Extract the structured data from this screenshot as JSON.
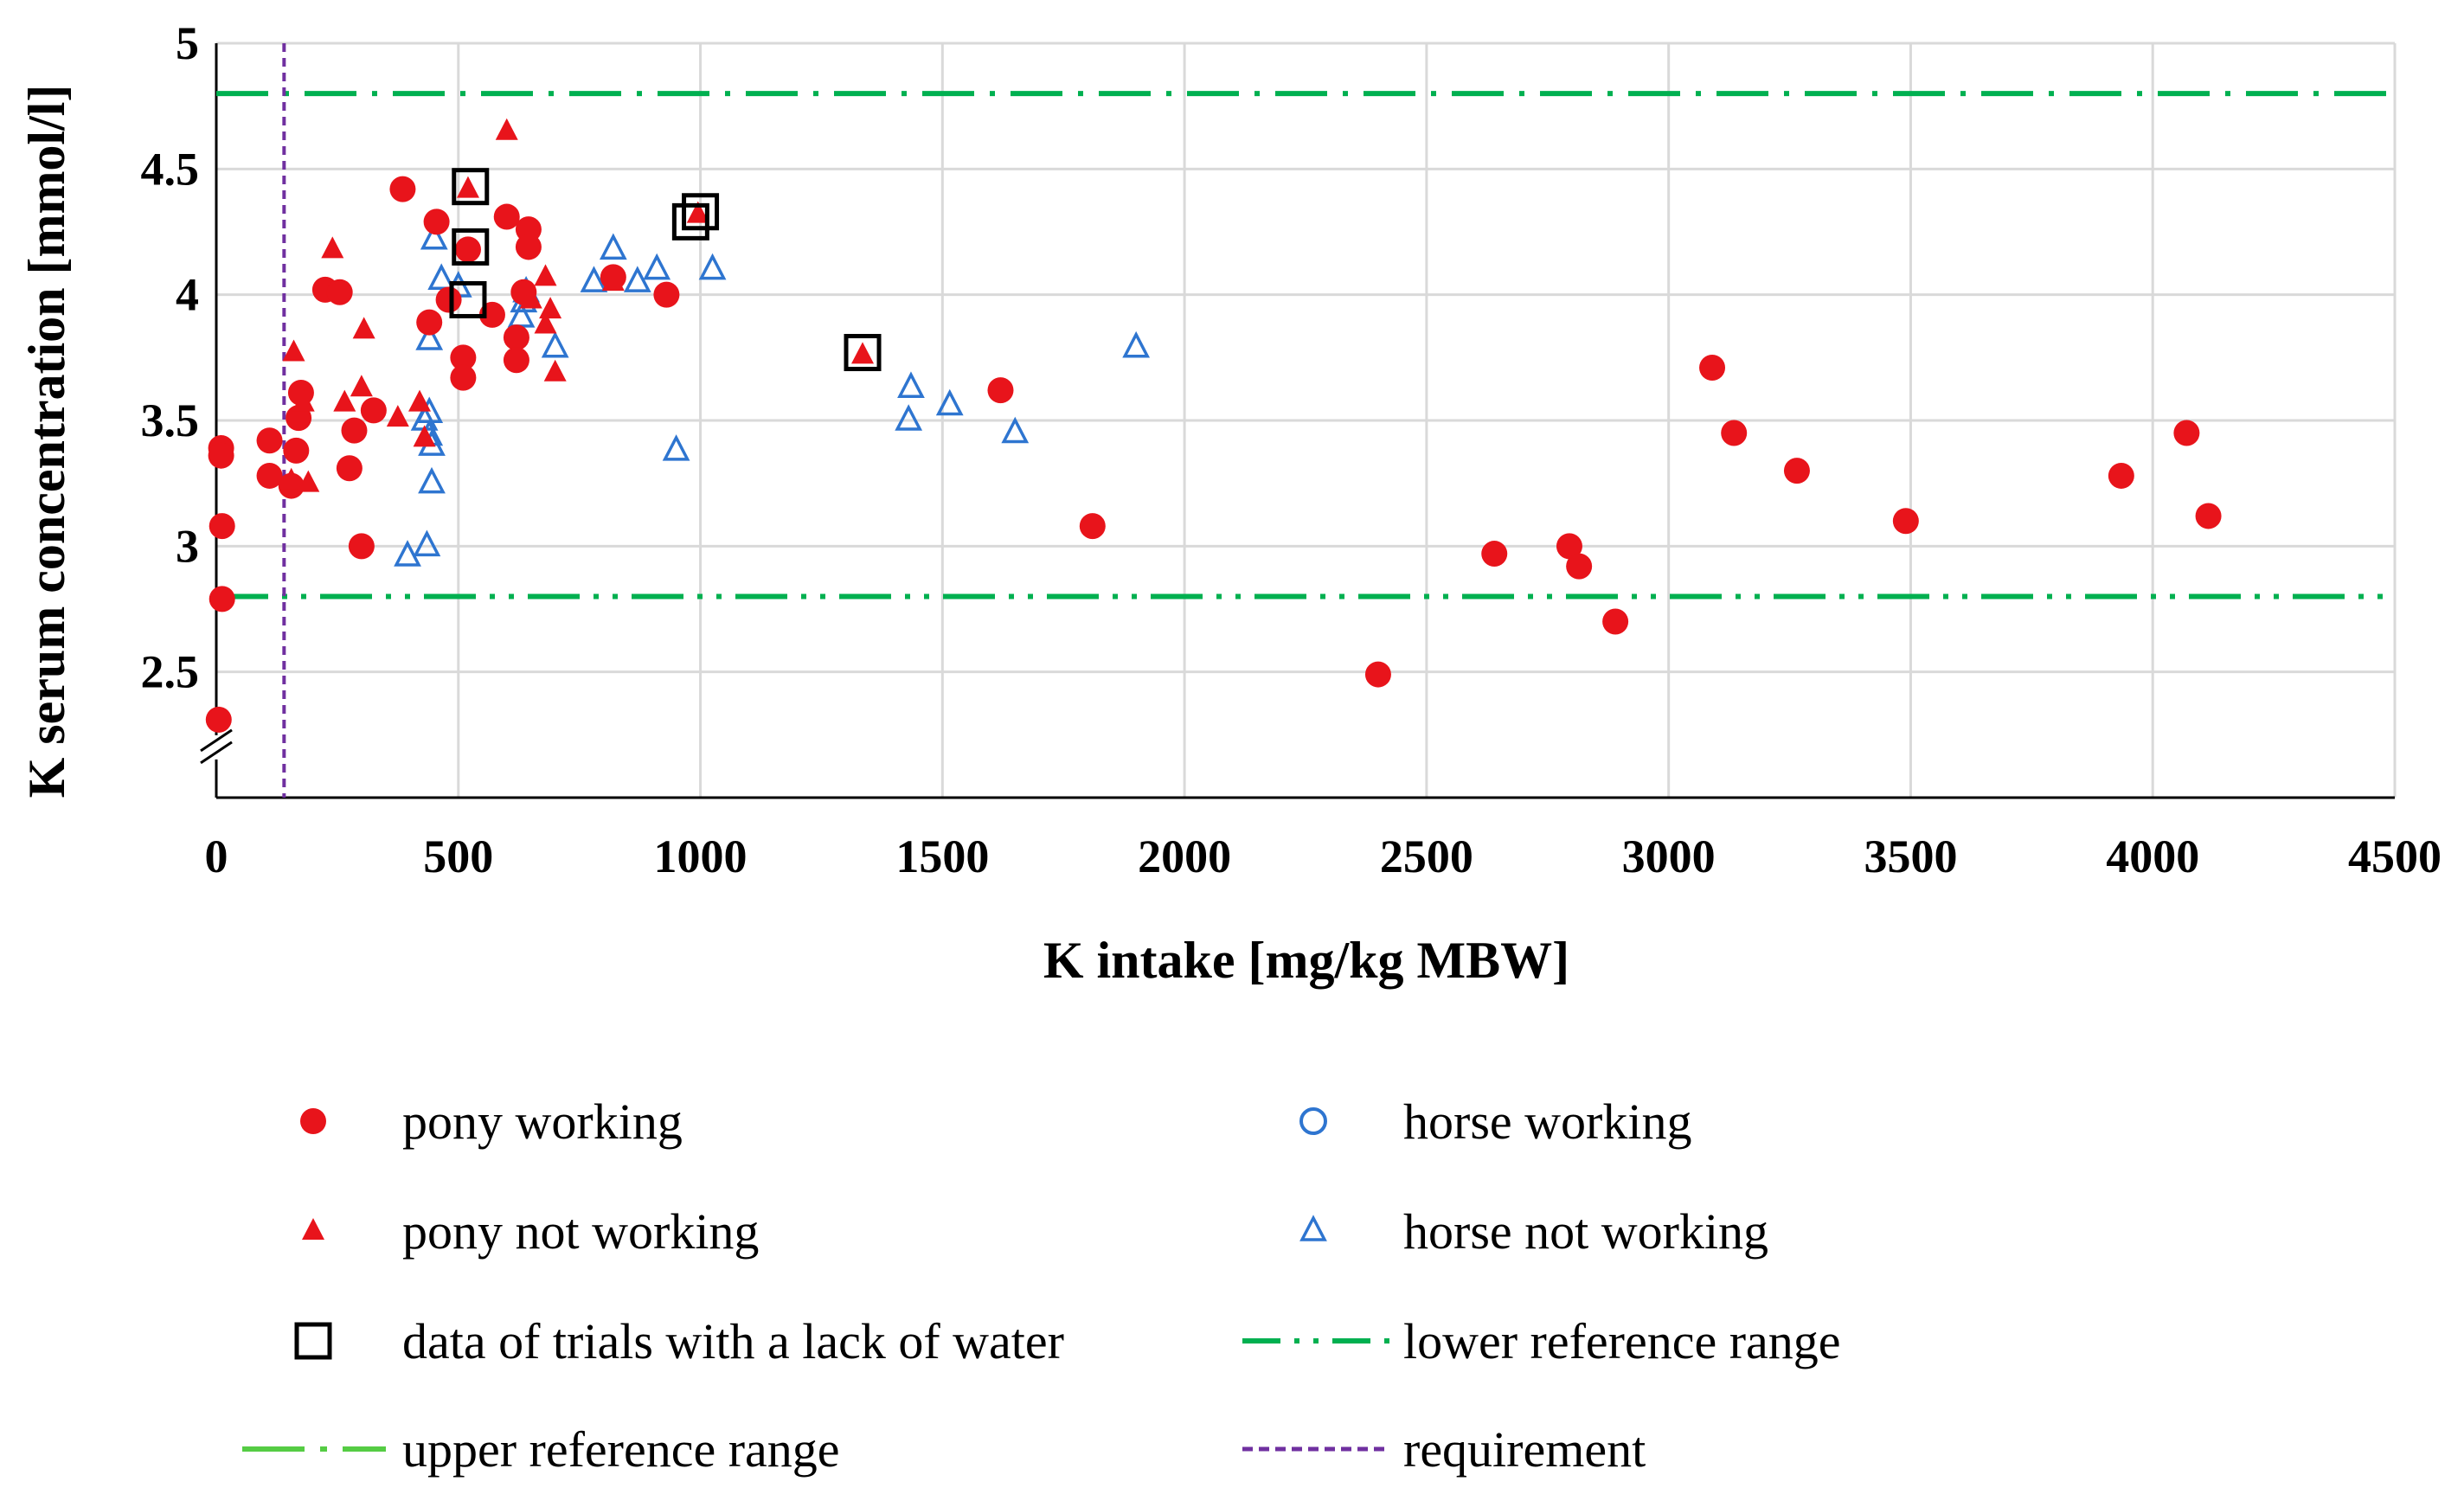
{
  "chart_data": {
    "type": "scatter",
    "xlabel": "K intake [mg/kg MBW]",
    "ylabel": "K serum concentration [mmol/l]",
    "xlim": [
      0,
      4500
    ],
    "ylim": [
      2.0,
      5.0
    ],
    "x_ticks": [
      0,
      500,
      1000,
      1500,
      2000,
      2500,
      3000,
      3500,
      4000,
      4500
    ],
    "y_ticks": [
      2.5,
      3,
      3.5,
      4,
      4.5,
      5
    ],
    "x_tick_labels": [
      "0",
      "500",
      "1000",
      "1500",
      "2000",
      "2500",
      "3000",
      "3500",
      "4000",
      "4500"
    ],
    "y_tick_labels": [
      "2.5",
      "3",
      "3.5",
      "4",
      "4.5",
      "5"
    ],
    "grid": "vertical and horizontal",
    "y_axis_break": true,
    "series": [
      {
        "name": "pony working",
        "marker": "filled-circle",
        "color": "#e8141b",
        "points": [
          [
            10,
            3.39
          ],
          [
            10,
            3.36
          ],
          [
            12,
            3.08
          ],
          [
            12,
            2.79
          ],
          [
            5,
            2.31
          ],
          [
            110,
            3.42
          ],
          [
            110,
            3.28
          ],
          [
            155,
            3.24
          ],
          [
            165,
            3.38
          ],
          [
            170,
            3.51
          ],
          [
            175,
            3.61
          ],
          [
            225,
            4.02
          ],
          [
            255,
            4.01
          ],
          [
            275,
            3.31
          ],
          [
            285,
            3.46
          ],
          [
            300,
            3.0
          ],
          [
            325,
            3.54
          ],
          [
            385,
            4.42
          ],
          [
            440,
            3.89
          ],
          [
            455,
            4.29
          ],
          [
            480,
            3.98
          ],
          [
            510,
            3.75
          ],
          [
            510,
            3.67
          ],
          [
            520,
            4.18
          ],
          [
            570,
            3.92
          ],
          [
            600,
            4.31
          ],
          [
            620,
            3.83
          ],
          [
            620,
            3.74
          ],
          [
            635,
            4.01
          ],
          [
            645,
            4.26
          ],
          [
            645,
            4.19
          ],
          [
            820,
            4.07
          ],
          [
            930,
            4.0
          ],
          [
            1620,
            3.62
          ],
          [
            1810,
            3.08
          ],
          [
            2400,
            2.49
          ],
          [
            2640,
            2.97
          ],
          [
            2795,
            3.0
          ],
          [
            2815,
            2.92
          ],
          [
            2890,
            2.7
          ],
          [
            3090,
            3.71
          ],
          [
            3135,
            3.45
          ],
          [
            3265,
            3.3
          ],
          [
            3490,
            3.1
          ],
          [
            3935,
            3.28
          ],
          [
            4070,
            3.45
          ],
          [
            4115,
            3.12
          ]
        ]
      },
      {
        "name": "pony not working",
        "marker": "filled-triangle",
        "color": "#e8141b",
        "points": [
          [
            155,
            3.26
          ],
          [
            160,
            3.77
          ],
          [
            190,
            3.25
          ],
          [
            180,
            3.57
          ],
          [
            240,
            4.18
          ],
          [
            265,
            3.57
          ],
          [
            300,
            3.63
          ],
          [
            305,
            3.86
          ],
          [
            375,
            3.51
          ],
          [
            420,
            3.57
          ],
          [
            430,
            3.43
          ],
          [
            520,
            4.42
          ],
          [
            600,
            4.65
          ],
          [
            650,
            3.98
          ],
          [
            680,
            4.07
          ],
          [
            680,
            3.88
          ],
          [
            690,
            3.94
          ],
          [
            700,
            3.69
          ],
          [
            820,
            4.05
          ],
          [
            995,
            4.32
          ],
          [
            1335,
            3.76
          ]
        ]
      },
      {
        "name": "horse working",
        "marker": "hollow-circle",
        "color": "#2e75d0",
        "points": []
      },
      {
        "name": "horse not working",
        "marker": "hollow-triangle",
        "color": "#2e75d0",
        "points": [
          [
            395,
            2.96
          ],
          [
            435,
            3.0
          ],
          [
            430,
            3.5
          ],
          [
            440,
            3.53
          ],
          [
            440,
            3.44
          ],
          [
            445,
            3.4
          ],
          [
            445,
            3.25
          ],
          [
            440,
            3.82
          ],
          [
            450,
            4.22
          ],
          [
            465,
            4.06
          ],
          [
            500,
            4.03
          ],
          [
            630,
            3.91
          ],
          [
            635,
            3.97
          ],
          [
            640,
            4.01
          ],
          [
            700,
            3.79
          ],
          [
            780,
            4.05
          ],
          [
            820,
            4.18
          ],
          [
            870,
            4.05
          ],
          [
            910,
            4.1
          ],
          [
            950,
            3.38
          ],
          [
            1025,
            4.1
          ],
          [
            1430,
            3.5
          ],
          [
            1435,
            3.63
          ],
          [
            1515,
            3.56
          ],
          [
            1650,
            3.45
          ],
          [
            1900,
            3.79
          ]
        ]
      },
      {
        "name": "data of trials with a lack of water",
        "marker": "hollow-square",
        "color": "#000000",
        "points": [
          [
            525,
            4.43
          ],
          [
            525,
            4.19
          ],
          [
            520,
            3.98
          ],
          [
            980,
            4.29
          ],
          [
            1000,
            4.33
          ],
          [
            1335,
            3.77
          ]
        ]
      }
    ],
    "reference_lines": [
      {
        "name": "upper reference range",
        "orientation": "horizontal",
        "value": 4.8,
        "color": "#00b050",
        "style": "dash-dot"
      },
      {
        "name": "lower reference range",
        "orientation": "horizontal",
        "value": 2.8,
        "color": "#00b050",
        "style": "dash-dot-dot"
      },
      {
        "name": "requirement",
        "orientation": "vertical",
        "value": 140,
        "color": "#7030a0",
        "style": "dashed"
      }
    ],
    "legend": {
      "placement": "bottom",
      "entries": [
        {
          "label": "pony working",
          "symbol": "filled-circle",
          "color": "#e8141b"
        },
        {
          "label": "horse working",
          "symbol": "hollow-circle",
          "color": "#2e75d0"
        },
        {
          "label": "pony not working",
          "symbol": "filled-triangle",
          "color": "#e8141b"
        },
        {
          "label": "horse not working",
          "symbol": "hollow-triangle",
          "color": "#2e75d0"
        },
        {
          "label": "data of trials with a lack of water",
          "symbol": "hollow-square",
          "color": "#000000"
        },
        {
          "label": "lower reference range",
          "symbol": "dash-dot-dot-line",
          "color": "#00b050"
        },
        {
          "label": "upper reference range",
          "symbol": "dash-dot-line",
          "color": "#55cc44"
        },
        {
          "label": "requirement",
          "symbol": "dashed-line",
          "color": "#7030a0"
        }
      ]
    }
  }
}
